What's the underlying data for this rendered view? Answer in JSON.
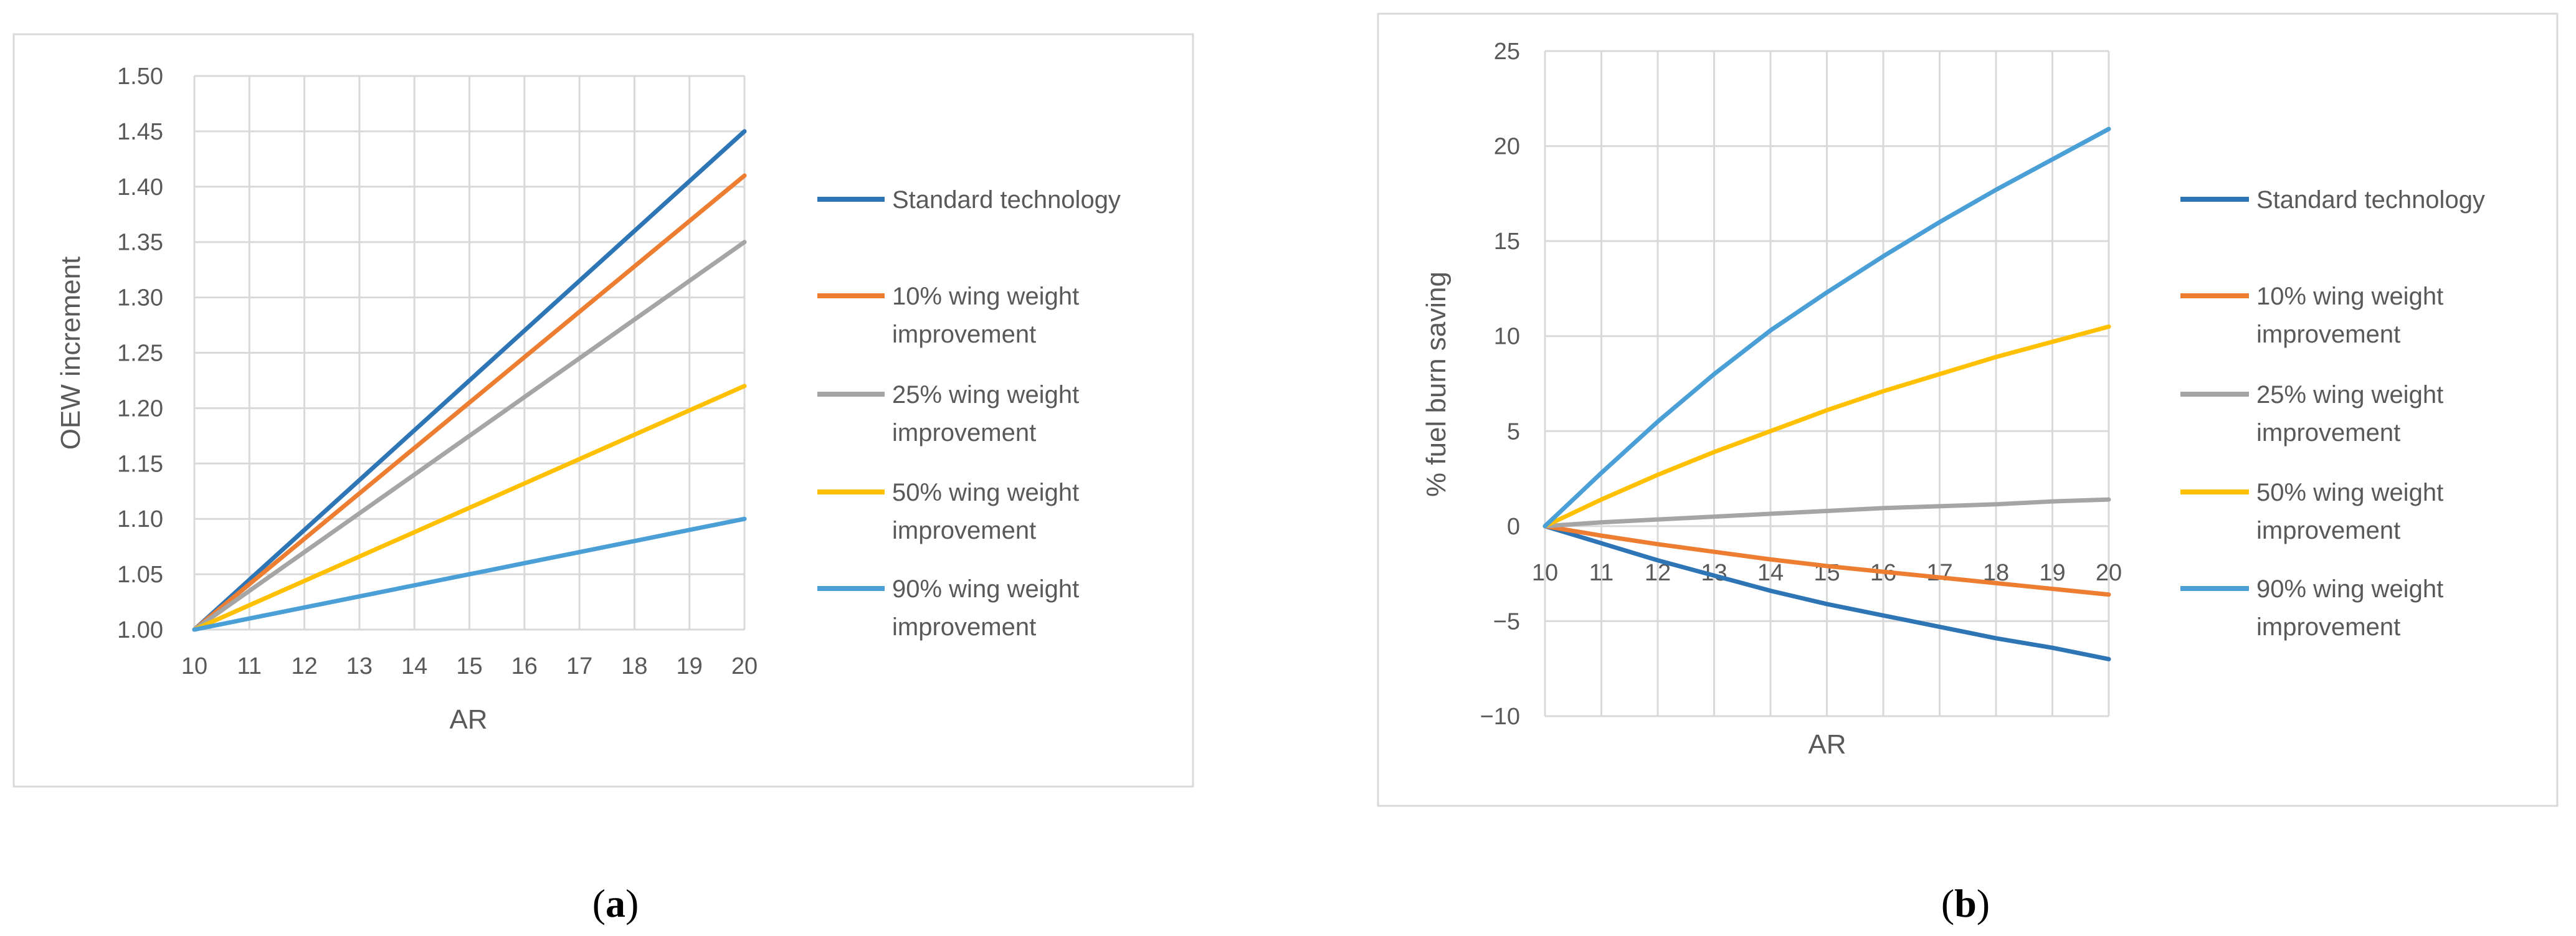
{
  "colors": {
    "standard": "#2E75B6",
    "w10": "#ED7D31",
    "w25": "#A5A5A5",
    "w50": "#FFC000",
    "w90": "#4A9FD6",
    "grid": "#D9D9D9",
    "text": "#595959"
  },
  "chart_data": [
    {
      "id": "a",
      "type": "line",
      "caption_letter": "a",
      "caption_open": "(",
      "caption_close": ")",
      "xlabel": "AR",
      "ylabel": "OEW increment",
      "xlim": [
        10,
        20
      ],
      "ylim": [
        1.0,
        1.5
      ],
      "xticks": [
        "10",
        "11",
        "12",
        "13",
        "14",
        "15",
        "16",
        "17",
        "18",
        "19",
        "20"
      ],
      "yticks": [
        "1.00",
        "1.05",
        "1.10",
        "1.15",
        "1.20",
        "1.25",
        "1.30",
        "1.35",
        "1.40",
        "1.45",
        "1.50"
      ],
      "grid": true,
      "legend": "right",
      "x": [
        10,
        11,
        12,
        13,
        14,
        15,
        16,
        17,
        18,
        19,
        20
      ],
      "series": [
        {
          "key": "standard",
          "name": "Standard technology",
          "legend_lines": [
            "Standard technology"
          ],
          "values": [
            1.0,
            1.045,
            1.09,
            1.135,
            1.18,
            1.225,
            1.27,
            1.315,
            1.36,
            1.405,
            1.45
          ]
        },
        {
          "key": "w10",
          "name": "10% wing weight improvement",
          "legend_lines": [
            "10% wing weight",
            "improvement"
          ],
          "values": [
            1.0,
            1.041,
            1.082,
            1.123,
            1.164,
            1.205,
            1.246,
            1.287,
            1.328,
            1.369,
            1.41
          ]
        },
        {
          "key": "w25",
          "name": "25% wing weight improvement",
          "legend_lines": [
            "25% wing weight",
            "improvement"
          ],
          "values": [
            1.0,
            1.035,
            1.07,
            1.105,
            1.14,
            1.175,
            1.21,
            1.245,
            1.28,
            1.315,
            1.35
          ]
        },
        {
          "key": "w50",
          "name": "50% wing weight improvement",
          "legend_lines": [
            "50% wing weight",
            "improvement"
          ],
          "values": [
            1.0,
            1.022,
            1.044,
            1.066,
            1.088,
            1.11,
            1.132,
            1.154,
            1.176,
            1.198,
            1.22
          ]
        },
        {
          "key": "w90",
          "name": "90% wing weight improvement",
          "legend_lines": [
            "90% wing weight",
            "improvement"
          ],
          "values": [
            1.0,
            1.01,
            1.02,
            1.03,
            1.04,
            1.05,
            1.06,
            1.07,
            1.08,
            1.09,
            1.1
          ]
        }
      ]
    },
    {
      "id": "b",
      "type": "line",
      "caption_letter": "b",
      "caption_open": "(",
      "caption_close": ")",
      "xlabel": "AR",
      "ylabel": "% fuel burn saving",
      "xlim": [
        10,
        20
      ],
      "ylim": [
        -10,
        25
      ],
      "xticks": [
        "10",
        "11",
        "12",
        "13",
        "14",
        "15",
        "16",
        "17",
        "18",
        "19",
        "20"
      ],
      "yticks": [
        "−10",
        "−5",
        "0",
        "5",
        "10",
        "15",
        "20",
        "25"
      ],
      "ytick_values": [
        -10,
        -5,
        0,
        5,
        10,
        15,
        20,
        25
      ],
      "grid": true,
      "legend": "right",
      "x": [
        10,
        11,
        12,
        13,
        14,
        15,
        16,
        17,
        18,
        19,
        20
      ],
      "series": [
        {
          "key": "standard",
          "name": "Standard technology",
          "legend_lines": [
            "Standard technology"
          ],
          "values": [
            0,
            -0.9,
            -1.8,
            -2.6,
            -3.4,
            -4.1,
            -4.7,
            -5.3,
            -5.9,
            -6.4,
            -7.0
          ]
        },
        {
          "key": "w10",
          "name": "10% wing weight improvement",
          "legend_lines": [
            "10% wing weight",
            "improvement"
          ],
          "values": [
            0,
            -0.5,
            -0.95,
            -1.35,
            -1.75,
            -2.1,
            -2.4,
            -2.7,
            -3.0,
            -3.3,
            -3.6
          ]
        },
        {
          "key": "w25",
          "name": "25% wing weight improvement",
          "legend_lines": [
            "25% wing weight",
            "improvement"
          ],
          "values": [
            0,
            0.2,
            0.35,
            0.5,
            0.65,
            0.8,
            0.95,
            1.05,
            1.15,
            1.3,
            1.4
          ]
        },
        {
          "key": "w50",
          "name": "50% wing weight improvement",
          "legend_lines": [
            "50% wing weight",
            "improvement"
          ],
          "values": [
            0,
            1.4,
            2.7,
            3.9,
            5.0,
            6.1,
            7.1,
            8.0,
            8.9,
            9.7,
            10.5
          ]
        },
        {
          "key": "w90",
          "name": "90% wing weight improvement",
          "legend_lines": [
            "90% wing weight",
            "improvement"
          ],
          "values": [
            0,
            2.8,
            5.5,
            8.0,
            10.3,
            12.3,
            14.2,
            16.0,
            17.7,
            19.3,
            20.9
          ]
        }
      ]
    }
  ]
}
